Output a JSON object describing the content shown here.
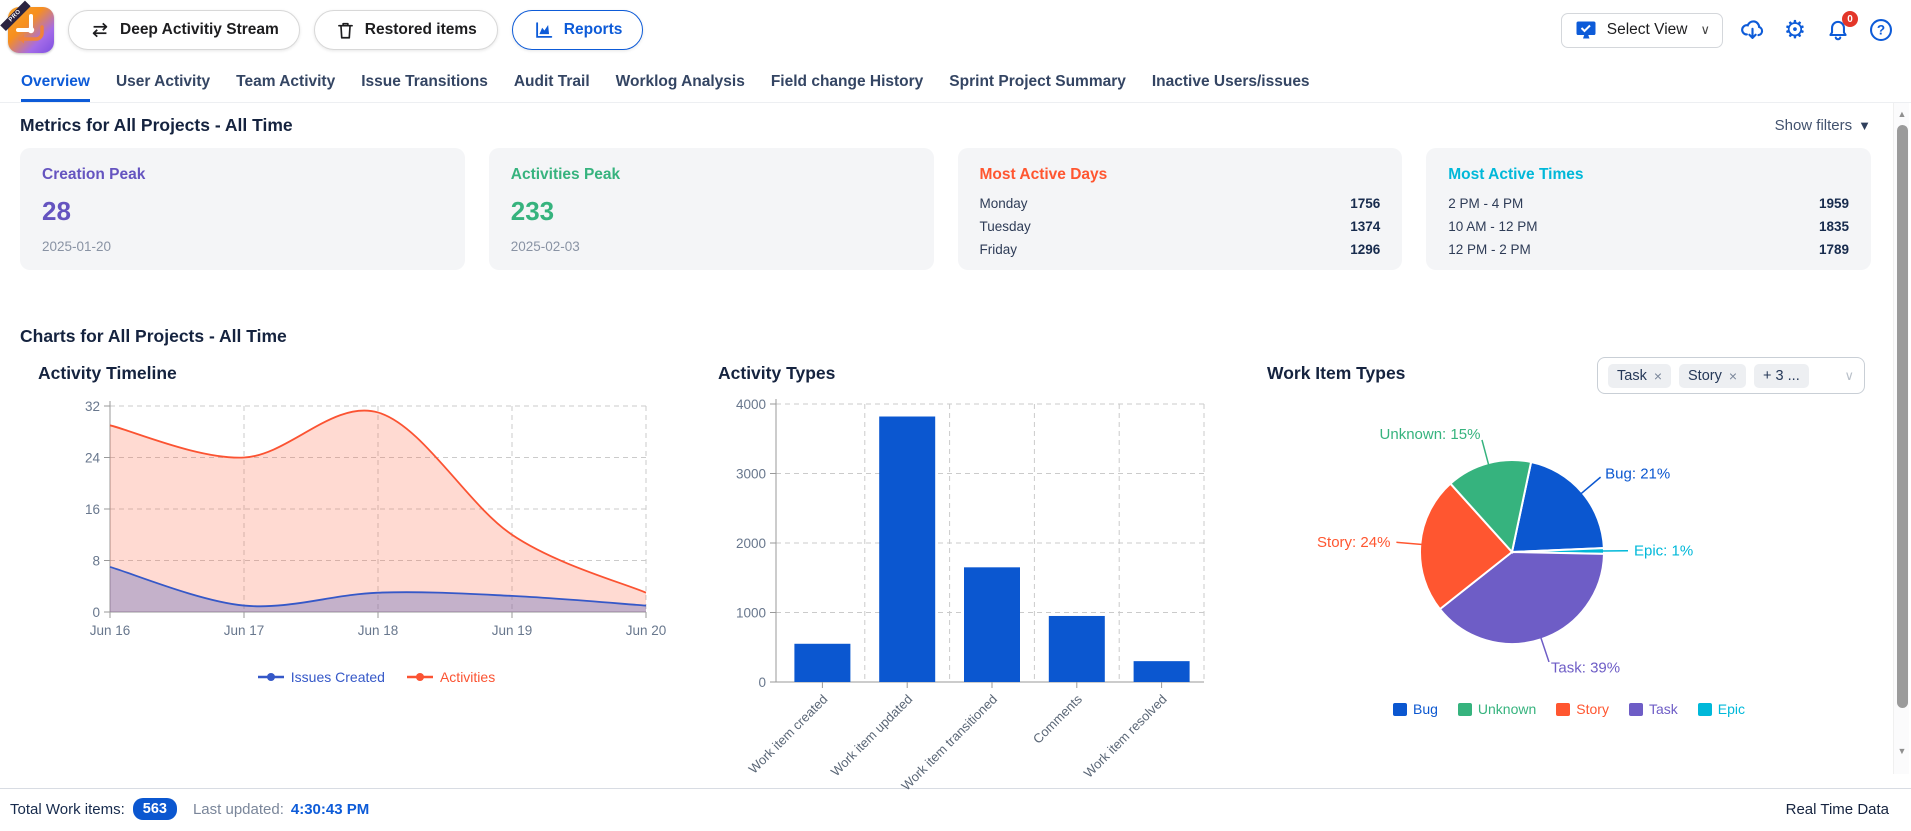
{
  "app": {
    "logo_badge": "PRO"
  },
  "header": {
    "stream_button": "Deep Activitiy Stream",
    "restored_button": "Restored items",
    "reports_button": "Reports",
    "select_view": "Select View",
    "notification_badge": "0",
    "accent_color": "#0D5BD8"
  },
  "tabs": {
    "active": "Overview",
    "items": [
      "Overview",
      "User Activity",
      "Team Activity",
      "Issue Transitions",
      "Audit Trail",
      "Worklog Analysis",
      "Field change History",
      "Sprint Project Summary",
      "Inactive Users/issues"
    ]
  },
  "metrics": {
    "heading": "Metrics for All Projects - All Time",
    "show_filters": "Show filters",
    "cards": [
      {
        "title": "Creation Peak",
        "value": "28",
        "date": "2025-01-20",
        "accent": "#6554C0"
      },
      {
        "title": "Activities Peak",
        "value": "233",
        "date": "2025-02-03",
        "accent": "#36B37E"
      },
      {
        "title": "Most Active Days",
        "accent": "#FF5630",
        "rows": [
          [
            "Monday",
            "1756"
          ],
          [
            "Tuesday",
            "1374"
          ],
          [
            "Friday",
            "1296"
          ]
        ]
      },
      {
        "title": "Most Active Times",
        "accent": "#00B8D9",
        "rows": [
          [
            "2 PM - 4 PM",
            "1959"
          ],
          [
            "10 AM - 12 PM",
            "1835"
          ],
          [
            "12 PM - 2 PM",
            "1789"
          ]
        ]
      }
    ]
  },
  "charts_heading": "Charts for All Projects - All Time",
  "work_item_filter": {
    "chips": [
      "Task",
      "Story"
    ],
    "more_chip": "+ 3 ..."
  },
  "chart_data": [
    {
      "id": "activity_timeline",
      "type": "area",
      "title": "Activity Timeline",
      "x": [
        "Jun 16",
        "Jun 17",
        "Jun 18",
        "Jun 19",
        "Jun 20"
      ],
      "series": [
        {
          "name": "Issues Created",
          "color": "#3558C8",
          "fill": "rgba(100,110,190,0.38)",
          "values": [
            7,
            1,
            3,
            2.5,
            1
          ]
        },
        {
          "name": "Activities",
          "color": "#FB5332",
          "fill": "rgba(255,86,48,0.22)",
          "values": [
            29,
            24,
            31,
            12,
            3
          ]
        }
      ],
      "ylim": [
        0,
        32
      ],
      "yticks": [
        0,
        8,
        16,
        24,
        32
      ],
      "grid": true,
      "legend_position": "bottom"
    },
    {
      "id": "activity_types",
      "type": "bar",
      "title": "Activity Types",
      "categories": [
        "Work item created",
        "Work item updated",
        "Work item transitioned",
        "Comments",
        "Work item resolved"
      ],
      "values": [
        550,
        3820,
        1650,
        950,
        300
      ],
      "bar_color": "#0B57D0",
      "ylim": [
        0,
        4000
      ],
      "yticks": [
        0,
        1000,
        2000,
        3000,
        4000
      ],
      "grid": true
    },
    {
      "id": "work_item_types",
      "type": "pie",
      "title": "Work Item Types",
      "start_angle_deg": 12,
      "slices": [
        {
          "label": "Bug",
          "pct": 21,
          "color": "#0B57D0"
        },
        {
          "label": "Epic",
          "pct": 1,
          "color": "#00B8D9"
        },
        {
          "label": "Task",
          "pct": 39,
          "color": "#6E5DC6"
        },
        {
          "label": "Story",
          "pct": 24,
          "color": "#FF5630"
        },
        {
          "label": "Unknown",
          "pct": 15,
          "color": "#36B37E"
        }
      ],
      "legend_order": [
        "Bug",
        "Unknown",
        "Story",
        "Task",
        "Epic"
      ],
      "label_format": "{label}: {pct}%",
      "legend_position": "bottom"
    }
  ],
  "footer": {
    "total_label": "Total Work items:",
    "total_value": "563",
    "updated_label": "Last updated:",
    "updated_value": "4:30:43 PM",
    "right_label": "Real Time Data"
  },
  "icons": {
    "caret_down": "▼",
    "chevron_down": "∨",
    "close": "×",
    "gear": "⚙",
    "scroll_up": "▲",
    "scroll_down": "▼"
  }
}
